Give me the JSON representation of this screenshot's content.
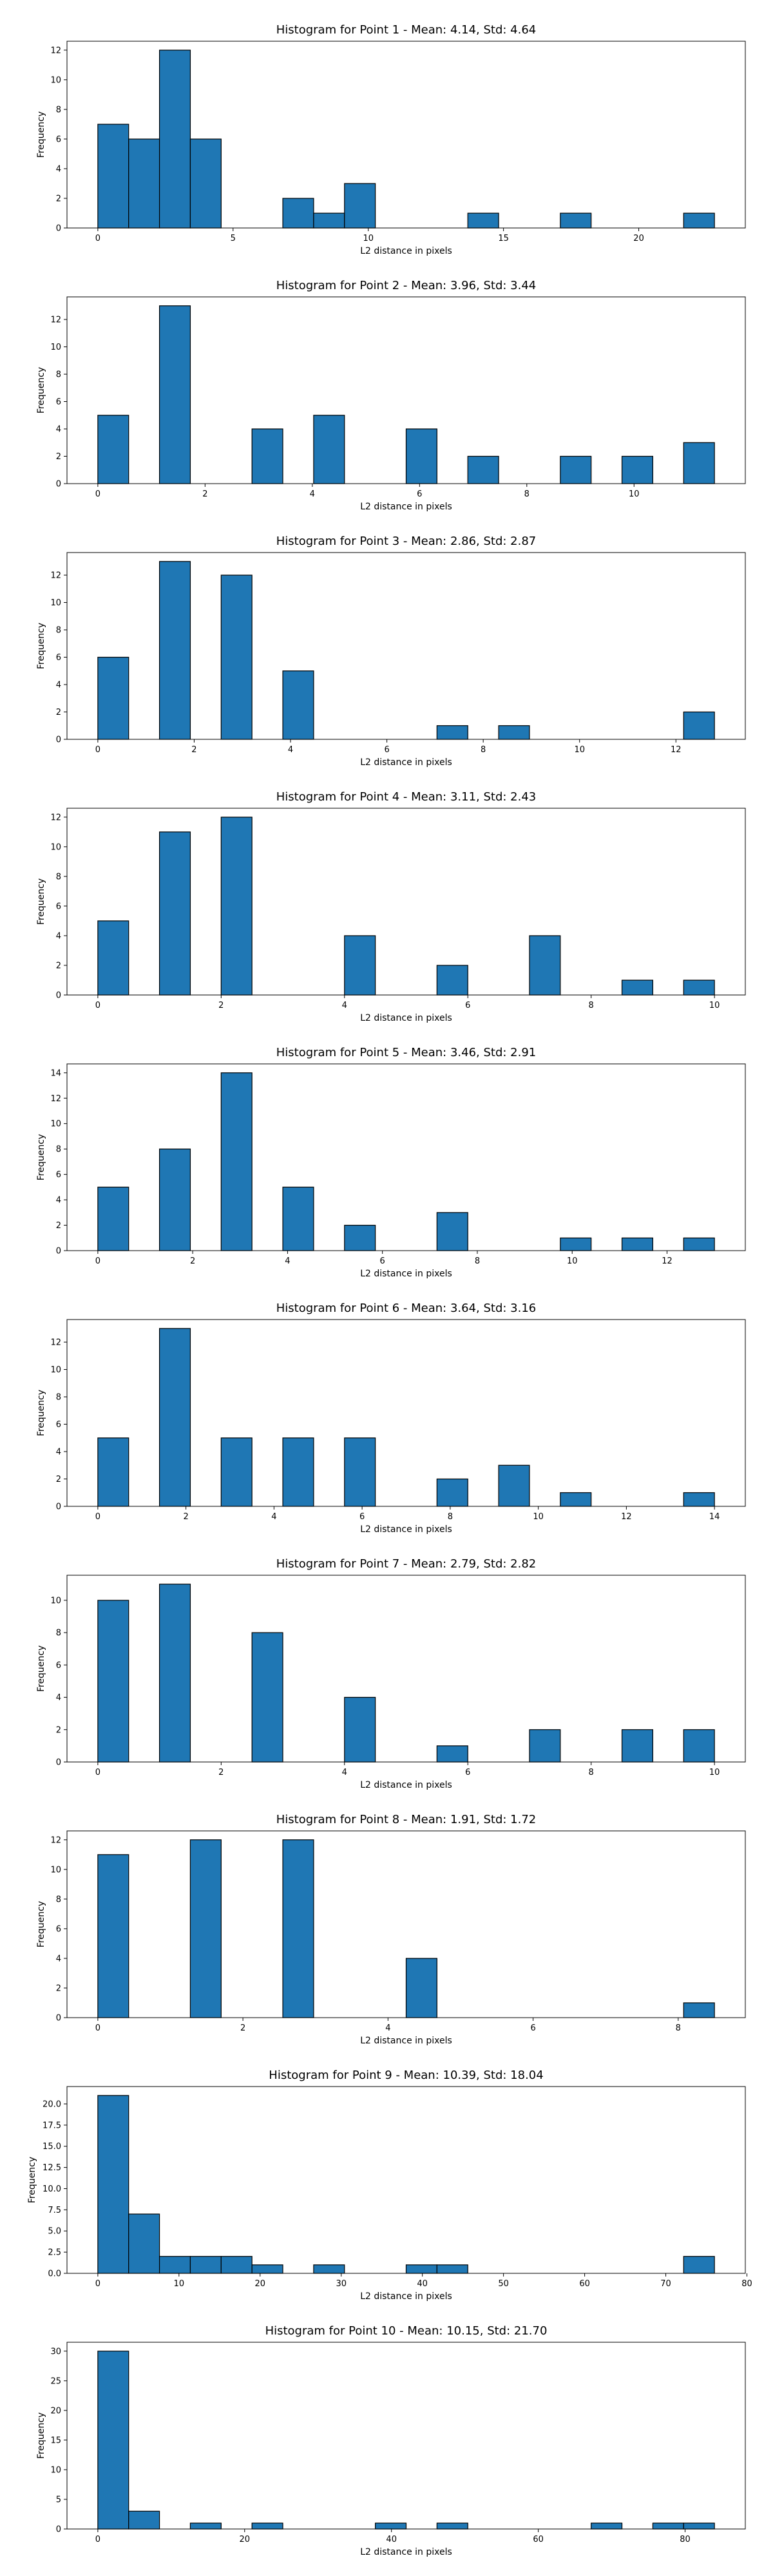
{
  "chart_data": [
    {
      "type": "bar",
      "title": "Histogram for Point 1 - Mean: 4.14, Std: 4.64",
      "xlabel": "L2 distance in pixels",
      "ylabel": "Frequency",
      "bin_start": 0,
      "bin_width": 1.14,
      "num_bins": 20,
      "values": [
        7,
        6,
        12,
        6,
        0,
        0,
        2,
        1,
        3,
        0,
        0,
        0,
        1,
        0,
        0,
        1,
        0,
        0,
        0,
        1
      ],
      "xticks": [
        0,
        5,
        10,
        15,
        20
      ],
      "xlim": [
        -1.14,
        23.94
      ],
      "yticks": [
        0,
        2,
        4,
        6,
        8,
        10,
        12
      ],
      "ylim": [
        0,
        12.6
      ],
      "bar_color": "#1f77b4",
      "edge_color": "#000000"
    },
    {
      "type": "bar",
      "title": "Histogram for Point 2 - Mean: 3.96, Std: 3.44",
      "xlabel": "L2 distance in pixels",
      "ylabel": "Frequency",
      "bin_start": 0,
      "bin_width": 0.575,
      "num_bins": 20,
      "values": [
        5,
        0,
        13,
        0,
        0,
        4,
        0,
        5,
        0,
        0,
        4,
        0,
        2,
        0,
        0,
        2,
        0,
        2,
        0,
        3
      ],
      "xticks": [
        0,
        2,
        4,
        6,
        8,
        10
      ],
      "xlim": [
        -0.575,
        12.075
      ],
      "yticks": [
        0,
        2,
        4,
        6,
        8,
        10,
        12
      ],
      "ylim": [
        0,
        13.65
      ],
      "bar_color": "#1f77b4",
      "edge_color": "#000000"
    },
    {
      "type": "bar",
      "title": "Histogram for Point 3 - Mean: 2.86, Std: 2.87",
      "xlabel": "L2 distance in pixels",
      "ylabel": "Frequency",
      "bin_start": 0,
      "bin_width": 0.64,
      "num_bins": 20,
      "values": [
        6,
        0,
        13,
        0,
        12,
        0,
        5,
        0,
        0,
        0,
        0,
        1,
        0,
        1,
        0,
        0,
        0,
        0,
        0,
        2
      ],
      "xticks": [
        0,
        2,
        4,
        6,
        8,
        10,
        12
      ],
      "xlim": [
        -0.64,
        13.44
      ],
      "yticks": [
        0,
        2,
        4,
        6,
        8,
        10,
        12
      ],
      "ylim": [
        0,
        13.65
      ],
      "bar_color": "#1f77b4",
      "edge_color": "#000000"
    },
    {
      "type": "bar",
      "title": "Histogram for Point 4 - Mean: 3.11, Std: 2.43",
      "xlabel": "L2 distance in pixels",
      "ylabel": "Frequency",
      "bin_start": 0,
      "bin_width": 0.5,
      "num_bins": 20,
      "values": [
        5,
        0,
        11,
        0,
        12,
        0,
        0,
        0,
        4,
        0,
        0,
        2,
        0,
        0,
        4,
        0,
        0,
        1,
        0,
        1
      ],
      "xticks": [
        0,
        2,
        4,
        6,
        8,
        10
      ],
      "xlim": [
        -0.5,
        10.5
      ],
      "yticks": [
        0,
        2,
        4,
        6,
        8,
        10,
        12
      ],
      "ylim": [
        0,
        12.6
      ],
      "bar_color": "#1f77b4",
      "edge_color": "#000000"
    },
    {
      "type": "bar",
      "title": "Histogram for Point 5 - Mean: 3.46, Std: 2.91",
      "xlabel": "L2 distance in pixels",
      "ylabel": "Frequency",
      "bin_start": 0,
      "bin_width": 0.65,
      "num_bins": 20,
      "values": [
        5,
        0,
        8,
        0,
        14,
        0,
        5,
        0,
        2,
        0,
        0,
        3,
        0,
        0,
        0,
        1,
        0,
        1,
        0,
        1
      ],
      "xticks": [
        0,
        2,
        4,
        6,
        8,
        10,
        12
      ],
      "xlim": [
        -0.65,
        13.65
      ],
      "yticks": [
        0,
        2,
        4,
        6,
        8,
        10,
        12,
        14
      ],
      "ylim": [
        0,
        14.7
      ],
      "bar_color": "#1f77b4",
      "edge_color": "#000000"
    },
    {
      "type": "bar",
      "title": "Histogram for Point 6 - Mean: 3.64, Std: 3.16",
      "xlabel": "L2 distance in pixels",
      "ylabel": "Frequency",
      "bin_start": 0,
      "bin_width": 0.7,
      "num_bins": 20,
      "values": [
        5,
        0,
        13,
        0,
        5,
        0,
        5,
        0,
        5,
        0,
        0,
        2,
        0,
        3,
        0,
        1,
        0,
        0,
        0,
        1
      ],
      "xticks": [
        0,
        2,
        4,
        6,
        8,
        10,
        12,
        14
      ],
      "xlim": [
        -0.7,
        14.7
      ],
      "yticks": [
        0,
        2,
        4,
        6,
        8,
        10,
        12
      ],
      "ylim": [
        0,
        13.65
      ],
      "bar_color": "#1f77b4",
      "edge_color": "#000000"
    },
    {
      "type": "bar",
      "title": "Histogram for Point 7 - Mean: 2.79, Std: 2.82",
      "xlabel": "L2 distance in pixels",
      "ylabel": "Frequency",
      "bin_start": 0,
      "bin_width": 0.5,
      "num_bins": 20,
      "values": [
        10,
        0,
        11,
        0,
        0,
        8,
        0,
        0,
        4,
        0,
        0,
        1,
        0,
        0,
        2,
        0,
        0,
        2,
        0,
        2
      ],
      "xticks": [
        0,
        2,
        4,
        6,
        8,
        10
      ],
      "xlim": [
        -0.5,
        10.5
      ],
      "yticks": [
        0,
        2,
        4,
        6,
        8,
        10
      ],
      "ylim": [
        0,
        11.55
      ],
      "bar_color": "#1f77b4",
      "edge_color": "#000000"
    },
    {
      "type": "bar",
      "title": "Histogram for Point 8 - Mean: 1.91, Std: 1.72",
      "xlabel": "L2 distance in pixels",
      "ylabel": "Frequency",
      "bin_start": 0,
      "bin_width": 0.425,
      "num_bins": 20,
      "values": [
        11,
        0,
        0,
        12,
        0,
        0,
        12,
        0,
        0,
        0,
        4,
        0,
        0,
        0,
        0,
        0,
        0,
        0,
        0,
        1
      ],
      "xticks": [
        0,
        2,
        4,
        6,
        8
      ],
      "xlim": [
        -0.425,
        8.925
      ],
      "yticks": [
        0,
        2,
        4,
        6,
        8,
        10,
        12
      ],
      "ylim": [
        0,
        12.6
      ],
      "bar_color": "#1f77b4",
      "edge_color": "#000000"
    },
    {
      "type": "bar",
      "title": "Histogram for Point 9 - Mean: 10.39, Std: 18.04",
      "xlabel": "L2 distance in pixels",
      "ylabel": "Frequency",
      "bin_start": 0,
      "bin_width": 3.8,
      "num_bins": 20,
      "values": [
        21,
        7,
        2,
        2,
        2,
        1,
        0,
        1,
        0,
        0,
        1,
        1,
        0,
        0,
        0,
        0,
        0,
        0,
        0,
        2
      ],
      "xticks": [
        0,
        10,
        20,
        30,
        40,
        50,
        60,
        70,
        80
      ],
      "xlim": [
        -3.8,
        79.8
      ],
      "yticks": [
        0.0,
        2.5,
        5.0,
        7.5,
        10.0,
        12.5,
        15.0,
        17.5,
        20.0
      ],
      "ylim": [
        0,
        22.05
      ],
      "ytick_labels": [
        "0.0",
        "2.5",
        "5.0",
        "7.5",
        "10.0",
        "12.5",
        "15.0",
        "17.5",
        "20.0"
      ],
      "bar_color": "#1f77b4",
      "edge_color": "#000000"
    },
    {
      "type": "bar",
      "title": "Histogram for Point 10 - Mean: 10.15, Std: 21.70",
      "xlabel": "L2 distance in pixels",
      "ylabel": "Frequency",
      "bin_start": 0,
      "bin_width": 4.2,
      "num_bins": 20,
      "values": [
        30,
        3,
        0,
        1,
        0,
        1,
        0,
        0,
        0,
        1,
        0,
        1,
        0,
        0,
        0,
        0,
        1,
        0,
        1,
        1
      ],
      "xticks": [
        0,
        20,
        40,
        60,
        80
      ],
      "xlim": [
        -4.2,
        88.2
      ],
      "yticks": [
        0,
        5,
        10,
        15,
        20,
        25,
        30
      ],
      "ylim": [
        0,
        31.5
      ],
      "bar_color": "#1f77b4",
      "edge_color": "#000000"
    }
  ]
}
